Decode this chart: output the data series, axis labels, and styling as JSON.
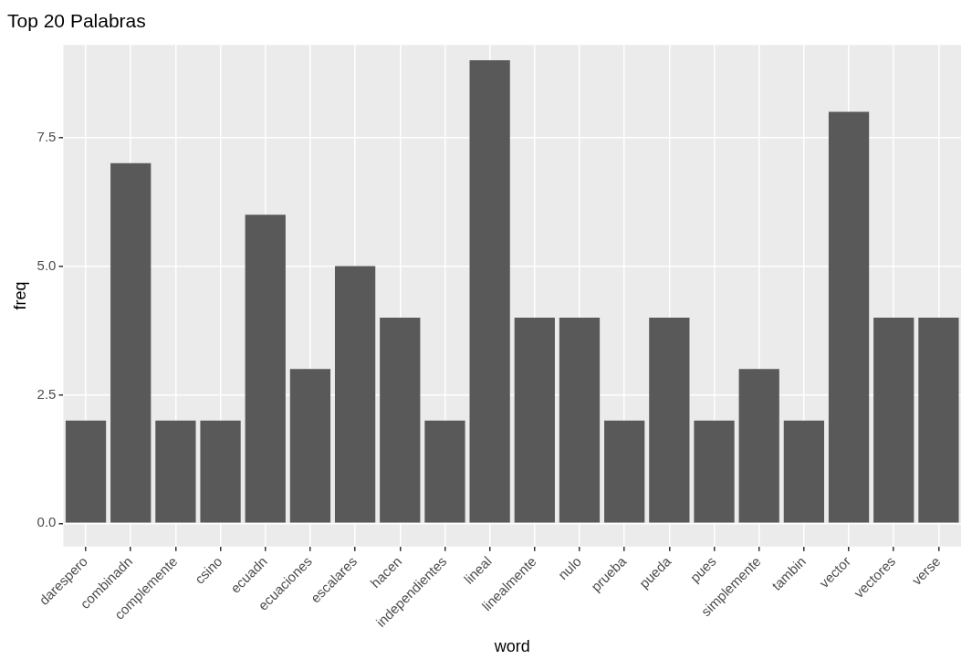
{
  "chart_data": {
    "type": "bar",
    "title": "Top 20 Palabras",
    "xlabel": "word",
    "ylabel": "freq",
    "categories": [
      "darespero",
      "combinadn",
      "complemente",
      "csino",
      "ecuadn",
      "ecuaciones",
      "escalares",
      "hacen",
      "independientes",
      "lineal",
      "linealmente",
      "nulo",
      "prueba",
      "pueda",
      "pues",
      "simplemente",
      "tambin",
      "vector",
      "vectores",
      "verse"
    ],
    "values": [
      2,
      7,
      2,
      2,
      6,
      3,
      5,
      4,
      2,
      9,
      4,
      4,
      2,
      4,
      2,
      3,
      2,
      8,
      4,
      4
    ],
    "color": "#595959",
    "ylim": [
      -0.45,
      9.3
    ],
    "yticks": [
      {
        "value": 0,
        "label": "0.0"
      },
      2.5,
      {
        "value": 5,
        "label": "5.0"
      },
      7.5
    ],
    "grid": true,
    "legend": false
  }
}
